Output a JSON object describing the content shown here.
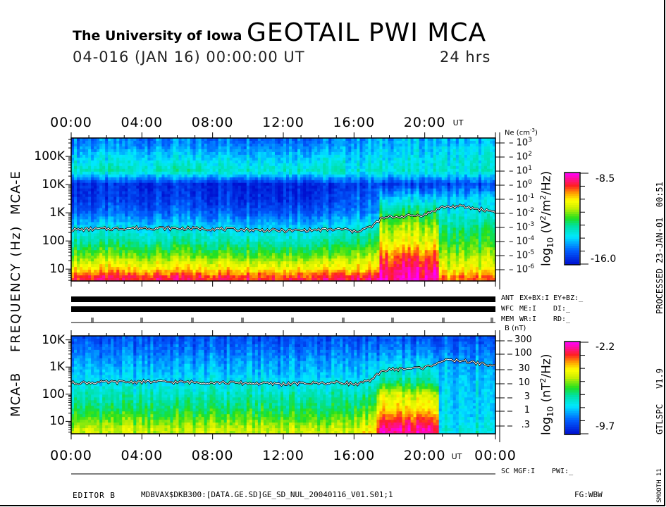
{
  "header": {
    "institution": "The University of Iowa",
    "title": "GEOTAIL PWI MCA",
    "date_line": "04-016 (JAN 16) 00:00:00 UT",
    "duration": "24 hrs"
  },
  "left_labels": {
    "frequency": "FREQUENCY (Hz)",
    "mca_e": "MCA-E",
    "mca_b": "MCA-B"
  },
  "status_rows": [
    {
      "label": "ANT",
      "a": "EX+BX:I",
      "b": "EY+BZ:_"
    },
    {
      "label": "WFC",
      "a": "ME:I",
      "b": "DI:_"
    },
    {
      "label": "MEM",
      "a": "WR:I",
      "b": "RD:_"
    }
  ],
  "bottom_status": {
    "a": "SC MGF:I",
    "b": "PWI:_"
  },
  "footer": {
    "editor": "EDITOR B",
    "path": "MDBVAX$DKB300:[DATA.GE.SD]GE_SD_NUL_20040116_V01.S01;1",
    "fg": "FG:WBW"
  },
  "right_side": {
    "processed": "PROCESSED 23-JAN-01  00:51",
    "version": "GTLSPC   V1.9",
    "smooth": "SMOOTH 11"
  },
  "colormap": [
    "#0010d0",
    "#0060ff",
    "#00e8ff",
    "#00e0a0",
    "#20e020",
    "#d0f000",
    "#ffff00",
    "#ffa000",
    "#ff2020",
    "#ff00ff"
  ],
  "chart_data": [
    {
      "type": "heatmap",
      "name_label": "MCA-E",
      "xlabel": "UT",
      "x_tick_labels": [
        "00:00",
        "04:00",
        "08:00",
        "12:00",
        "16:00",
        "20:00"
      ],
      "x_unit": "UT",
      "xlim_hours": [
        0,
        24
      ],
      "ylabel": "FREQUENCY (Hz)",
      "y_scale": "log",
      "y_tick_labels": [
        "100K",
        "10K",
        "1K",
        "100",
        "10"
      ],
      "ylim_hz": [
        3.8,
        450000
      ],
      "right_axis": {
        "label": "Ne (cm",
        "label_sup": "-3",
        "label_end": ")",
        "ticks": [
          {
            "base": "10",
            "exp": "3"
          },
          {
            "base": "10",
            "exp": "2"
          },
          {
            "base": "10",
            "exp": "1"
          },
          {
            "base": "10",
            "exp": "0"
          },
          {
            "base": "10",
            "exp": "-1"
          },
          {
            "base": "10",
            "exp": "-2"
          },
          {
            "base": "10",
            "exp": "-3"
          },
          {
            "base": "10",
            "exp": "-4"
          },
          {
            "base": "10",
            "exp": "-5"
          },
          {
            "base": "10",
            "exp": "-6"
          }
        ]
      },
      "colorbar": {
        "label_pre": "log",
        "label_sub": "10",
        "label_unit": "(V",
        "label_sup1": "2",
        "label_mid": "/m",
        "label_sup2": "2",
        "label_end": "/Hz)",
        "max": "-8.5",
        "min": "-16.0"
      },
      "band_freqs_hz": [
        5,
        10,
        30,
        100,
        300,
        1000,
        3000,
        10000,
        30000,
        100000,
        300000
      ],
      "segments": [
        {
          "hours": [
            0,
            15.5
          ],
          "levels": [
            0.88,
            0.72,
            0.55,
            0.4,
            0.3,
            0.15,
            0.08,
            0.05,
            0.38,
            0.28,
            0.18
          ]
        },
        {
          "hours": [
            15.5,
            17.5
          ],
          "levels": [
            0.9,
            0.72,
            0.6,
            0.45,
            0.35,
            0.2,
            0.15,
            0.1,
            0.35,
            0.28,
            0.22
          ]
        },
        {
          "hours": [
            17.5,
            20.8
          ],
          "levels": [
            0.95,
            0.92,
            0.82,
            0.66,
            0.6,
            0.45,
            0.3,
            0.08,
            0.35,
            0.3,
            0.25
          ]
        },
        {
          "hours": [
            20.8,
            24
          ],
          "levels": [
            0.8,
            0.68,
            0.58,
            0.48,
            0.42,
            0.32,
            0.28,
            0.1,
            0.35,
            0.32,
            0.25
          ]
        }
      ],
      "line": {
        "hours": [
          0,
          4,
          8,
          12,
          15.5,
          16,
          17,
          17.5,
          18,
          20,
          21,
          22,
          24
        ],
        "values_hz": [
          250,
          290,
          270,
          230,
          260,
          210,
          320,
          600,
          700,
          850,
          1600,
          1700,
          1100
        ]
      }
    },
    {
      "type": "heatmap",
      "name_label": "MCA-B",
      "xlabel": "UT",
      "x_tick_labels": [
        "00:00",
        "04:00",
        "08:00",
        "12:00",
        "16:00",
        "20:00",
        "00:00"
      ],
      "x_unit": "UT",
      "xlim_hours": [
        0,
        24
      ],
      "y_scale": "log",
      "y_tick_labels": [
        "10K",
        "1K",
        "100",
        "10"
      ],
      "ylim_hz": [
        3.5,
        14000
      ],
      "right_axis": {
        "label": "B (nT)",
        "ticks": [
          "300",
          "100",
          "30",
          "10",
          "3",
          "1",
          ".3"
        ]
      },
      "colorbar": {
        "label_pre": "log",
        "label_sub": "10",
        "label_unit": "(nT",
        "label_sup1": "2",
        "label_mid": "/Hz)",
        "max": "-2.2",
        "min": "-9.7"
      },
      "band_freqs_hz": [
        5,
        10,
        30,
        100,
        300,
        1000,
        3000,
        10000
      ],
      "segments": [
        {
          "hours": [
            0,
            16
          ],
          "levels": [
            0.62,
            0.55,
            0.45,
            0.38,
            0.3,
            0.24,
            0.18,
            0.12
          ]
        },
        {
          "hours": [
            16,
            17.3
          ],
          "levels": [
            0.68,
            0.6,
            0.5,
            0.4,
            0.32,
            0.26,
            0.2,
            0.12
          ]
        },
        {
          "hours": [
            17.3,
            20.8
          ],
          "levels": [
            0.92,
            0.85,
            0.7,
            0.62,
            0.4,
            0.3,
            0.2,
            0.12
          ]
        },
        {
          "hours": [
            20.8,
            24
          ],
          "levels": [
            0.35,
            0.32,
            0.3,
            0.3,
            0.28,
            0.25,
            0.2,
            0.14
          ]
        }
      ],
      "line": {
        "hours": [
          0,
          4,
          8,
          12,
          15.5,
          16,
          17,
          17.5,
          18,
          20,
          21,
          22,
          24
        ],
        "values_hz": [
          260,
          290,
          270,
          240,
          270,
          230,
          320,
          700,
          800,
          950,
          1700,
          1750,
          1100
        ]
      }
    }
  ]
}
